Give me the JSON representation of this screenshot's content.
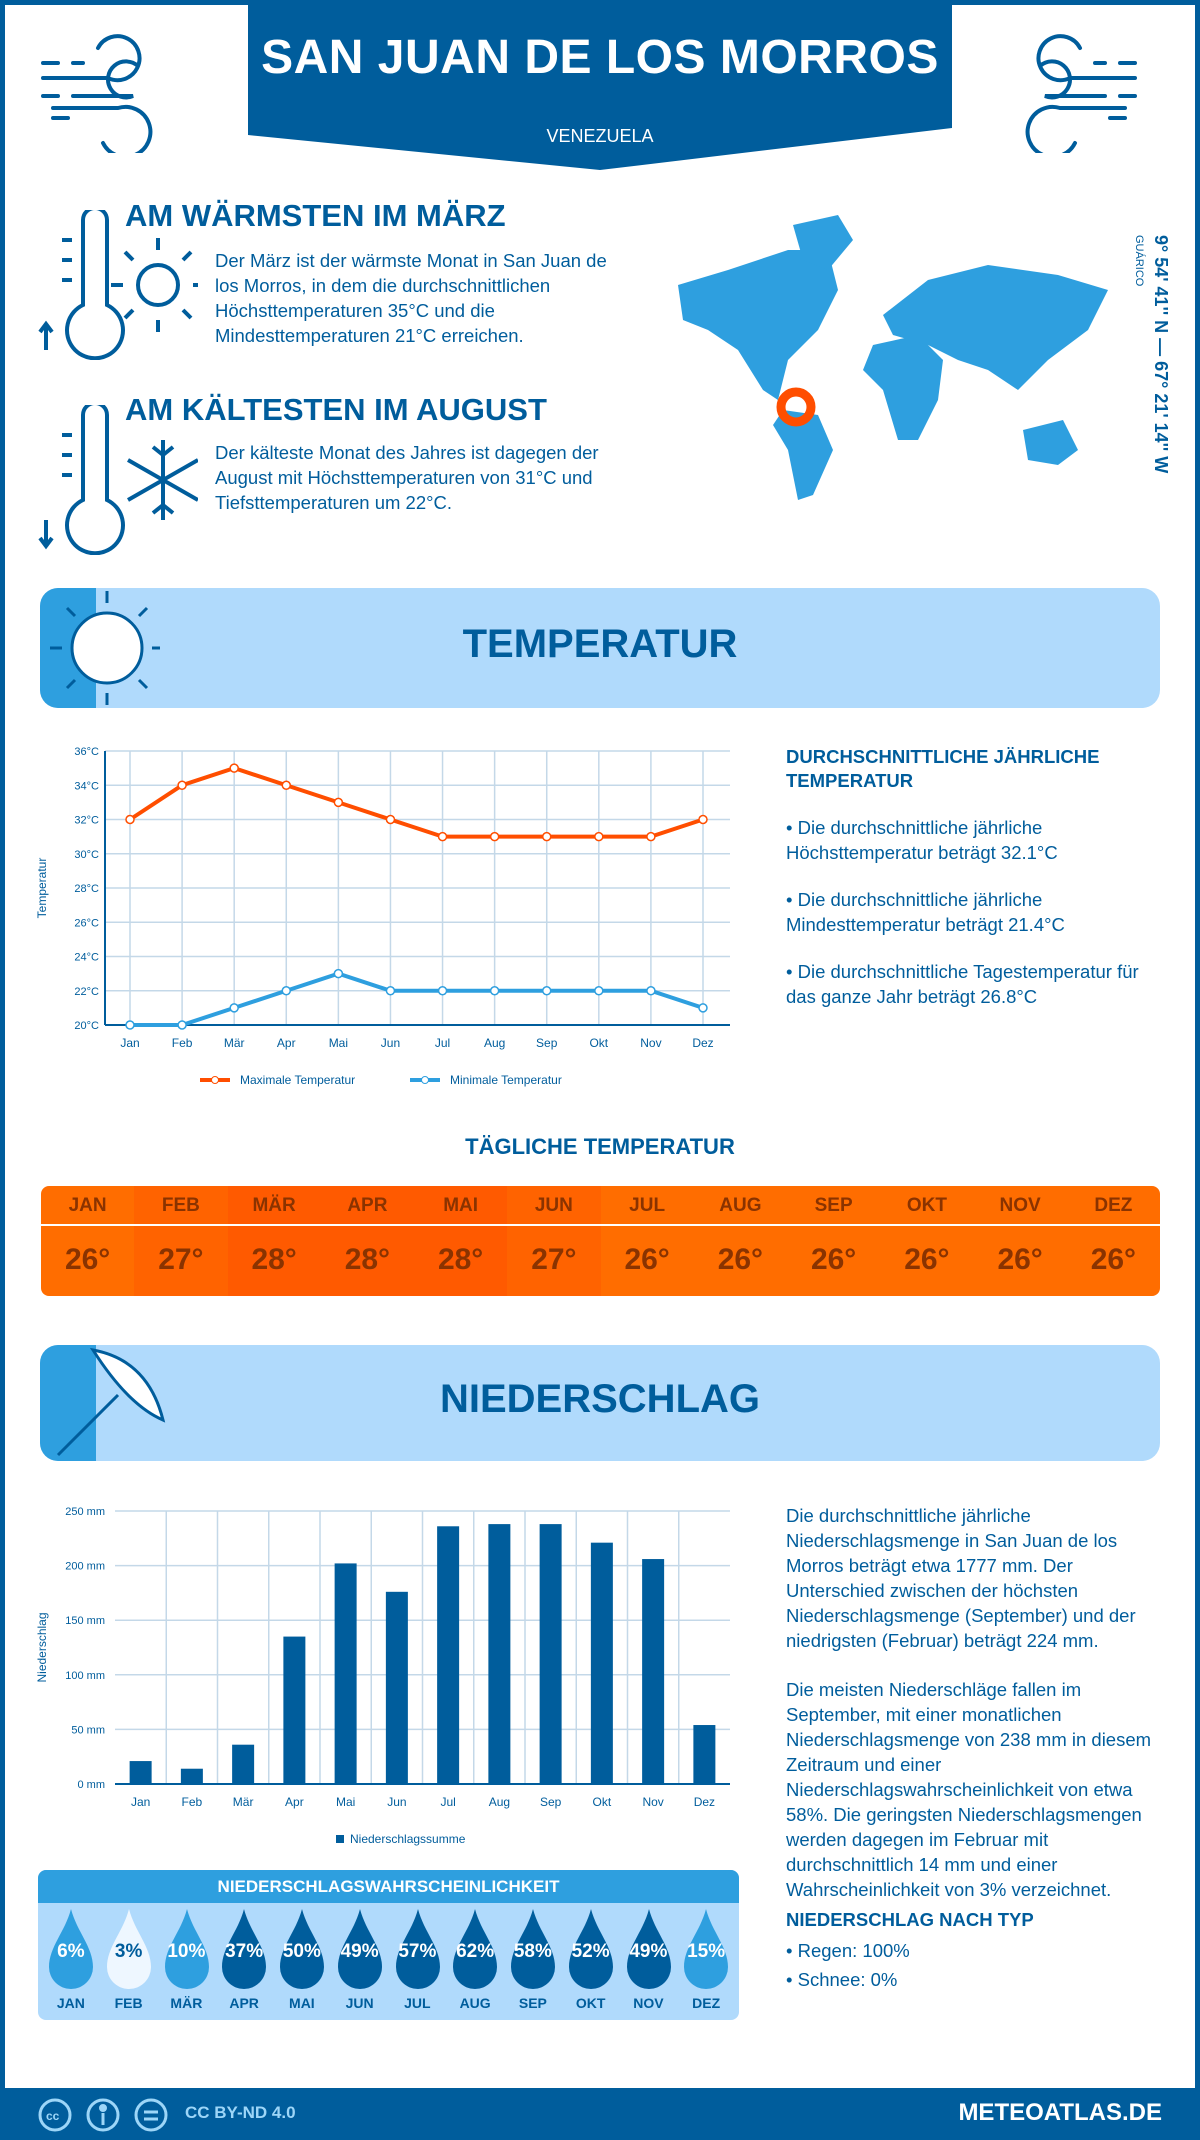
{
  "header": {
    "title": "SAN JUAN DE LOS MORROS",
    "country": "VENEZUELA"
  },
  "coords": {
    "text": "9° 54' 41'' N — 67° 21' 14'' W",
    "region": "GUÁRICO"
  },
  "warm": {
    "title": "AM WÄRMSTEN IM MÄRZ",
    "text": "Der März ist der wärmste Monat in San Juan de los Morros, in dem die durchschnittlichen Höchsttemperaturen 35°C und die Mindesttemperaturen 21°C erreichen."
  },
  "cold": {
    "title": "AM KÄLTESTEN IM AUGUST",
    "text": "Der kälteste Monat des Jahres ist dagegen der August mit Höchsttemperaturen von 31°C und Tiefsttemperaturen um 22°C."
  },
  "temperature": {
    "banner": "TEMPERATUR",
    "side_title": "DURCHSCHNITTLICHE JÄHRLICHE TEMPERATUR",
    "bullets": [
      "• Die durchschnittliche jährliche Höchsttemperatur beträgt 32.1°C",
      "• Die durchschnittliche jährliche Mindesttemperatur beträgt 21.4°C",
      "• Die durchschnittliche Tagestemperatur für das ganze Jahr beträgt 26.8°C"
    ],
    "daily_title": "TÄGLICHE TEMPERATUR",
    "daily": [
      {
        "m": "JAN",
        "v": "26°",
        "c": "#ff6d00"
      },
      {
        "m": "FEB",
        "v": "27°",
        "c": "#ff6300"
      },
      {
        "m": "MÄR",
        "v": "28°",
        "c": "#ff5a00"
      },
      {
        "m": "APR",
        "v": "28°",
        "c": "#ff5a00"
      },
      {
        "m": "MAI",
        "v": "28°",
        "c": "#ff5a00"
      },
      {
        "m": "JUN",
        "v": "27°",
        "c": "#ff6300"
      },
      {
        "m": "JUL",
        "v": "26°",
        "c": "#ff6d00"
      },
      {
        "m": "AUG",
        "v": "26°",
        "c": "#ff6d00"
      },
      {
        "m": "SEP",
        "v": "26°",
        "c": "#ff6d00"
      },
      {
        "m": "OKT",
        "v": "26°",
        "c": "#ff6d00"
      },
      {
        "m": "NOV",
        "v": "26°",
        "c": "#ff6d00"
      },
      {
        "m": "DEZ",
        "v": "26°",
        "c": "#ff6d00"
      }
    ]
  },
  "precipitation": {
    "banner": "NIEDERSCHLAG",
    "text1": "Die durchschnittliche jährliche Niederschlagsmenge in San Juan de los Morros beträgt etwa 1777 mm. Der Unterschied zwischen der höchsten Niederschlagsmenge (September) und der niedrigsten (Februar) beträgt 224 mm.",
    "text2": "Die meisten Niederschläge fallen im September, mit einer monatlichen Niederschlagsmenge von 238 mm in diesem Zeitraum und einer Niederschlagswahrscheinlichkeit von etwa 58%. Die geringsten Niederschlagsmengen werden dagegen im Februar mit durchschnittlich 14 mm und einer Wahrscheinlichkeit von 3% verzeichnet.",
    "type_title": "NIEDERSCHLAG NACH TYP",
    "types": [
      "• Regen: 100%",
      "• Schnee: 0%"
    ],
    "prob_title": "NIEDERSCHLAGSWAHRSCHEINLICHKEIT",
    "prob": [
      {
        "m": "JAN",
        "v": "6%"
      },
      {
        "m": "FEB",
        "v": "3%"
      },
      {
        "m": "MÄR",
        "v": "10%"
      },
      {
        "m": "APR",
        "v": "37%"
      },
      {
        "m": "MAI",
        "v": "50%"
      },
      {
        "m": "JUN",
        "v": "49%"
      },
      {
        "m": "JUL",
        "v": "57%"
      },
      {
        "m": "AUG",
        "v": "62%"
      },
      {
        "m": "SEP",
        "v": "58%"
      },
      {
        "m": "OKT",
        "v": "52%"
      },
      {
        "m": "NOV",
        "v": "49%"
      },
      {
        "m": "DEZ",
        "v": "15%"
      }
    ]
  },
  "footer": {
    "license": "CC BY-ND 4.0",
    "site": "METEOATLAS.DE"
  },
  "colors": {
    "dark": "#005d9c",
    "mid": "#2e9fdf",
    "light": "#b0dafc",
    "max": "#ff4e00",
    "min": "#2e9fdf"
  },
  "chart_data": [
    {
      "type": "line",
      "categories": [
        "Jan",
        "Feb",
        "Mär",
        "Apr",
        "Mai",
        "Jun",
        "Jul",
        "Aug",
        "Sep",
        "Okt",
        "Nov",
        "Dez"
      ],
      "series": [
        {
          "name": "Maximale Temperatur",
          "values": [
            32,
            34,
            35,
            34,
            33,
            32,
            31,
            31,
            31,
            31,
            31,
            32
          ]
        },
        {
          "name": "Minimale Temperatur",
          "values": [
            20,
            20,
            21,
            22,
            23,
            22,
            22,
            22,
            22,
            22,
            22,
            21
          ]
        }
      ],
      "ylabel": "Temperatur",
      "ylim": [
        20,
        36
      ],
      "yticks": [
        "20°C",
        "22°C",
        "24°C",
        "26°C",
        "28°C",
        "30°C",
        "32°C",
        "34°C",
        "36°C"
      ],
      "grid": true,
      "legend": "bottom"
    },
    {
      "type": "bar",
      "categories": [
        "Jan",
        "Feb",
        "Mär",
        "Apr",
        "Mai",
        "Jun",
        "Jul",
        "Aug",
        "Sep",
        "Okt",
        "Nov",
        "Dez"
      ],
      "series": [
        {
          "name": "Niederschlagssumme",
          "values": [
            21,
            14,
            36,
            135,
            202,
            176,
            236,
            238,
            238,
            221,
            206,
            54
          ]
        }
      ],
      "ylabel": "Niederschlag",
      "ylim": [
        0,
        250
      ],
      "yticks": [
        "0 mm",
        "50 mm",
        "100 mm",
        "150 mm",
        "200 mm",
        "250 mm"
      ],
      "grid": true,
      "legend": "bottom"
    }
  ]
}
